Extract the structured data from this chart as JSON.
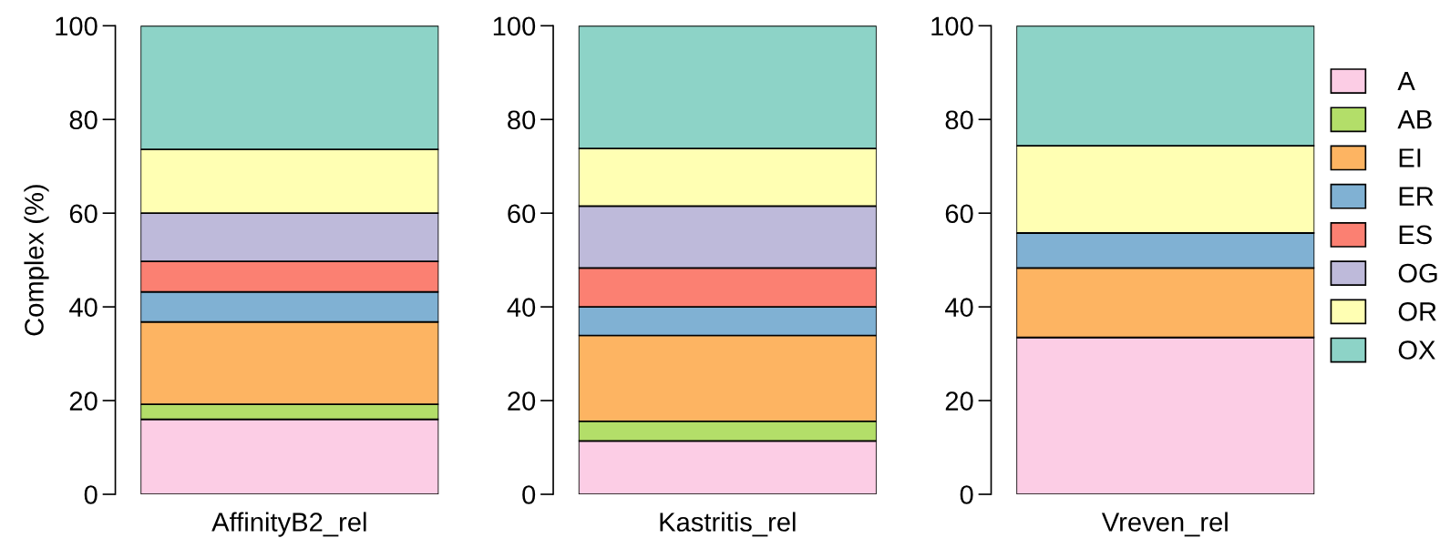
{
  "chart_data": [
    {
      "type": "bar",
      "stacked": true,
      "categories": [
        "AffinityB2_rel"
      ],
      "ylabel": "Complex (%)",
      "ylim": [
        0,
        100
      ],
      "yticks": [
        0,
        20,
        40,
        60,
        80,
        100
      ],
      "grid": false,
      "series": [
        {
          "color": "#fccde5",
          "values": [
            16
          ]
        },
        {
          "color": "#b3de69",
          "values": [
            3.2
          ]
        },
        {
          "color": "#fdb462",
          "values": [
            17.6
          ]
        },
        {
          "color": "#80b1d3",
          "values": [
            6.4
          ]
        },
        {
          "color": "#fb8072",
          "values": [
            6.5
          ]
        },
        {
          "color": "#bebada",
          "values": [
            10.3
          ]
        },
        {
          "color": "#ffffb3",
          "values": [
            13.6
          ]
        },
        {
          "color": "#8dd3c7",
          "values": [
            26.4
          ]
        }
      ]
    },
    {
      "type": "bar",
      "stacked": true,
      "categories": [
        "Kastritis_rel"
      ],
      "ylim": [
        0,
        100
      ],
      "yticks": [
        0,
        20,
        40,
        60,
        80,
        100
      ],
      "grid": false,
      "series": [
        {
          "color": "#fccde5",
          "values": [
            11.4
          ]
        },
        {
          "color": "#b3de69",
          "values": [
            4.2
          ]
        },
        {
          "color": "#fdb462",
          "values": [
            18.3
          ]
        },
        {
          "color": "#80b1d3",
          "values": [
            6.1
          ]
        },
        {
          "color": "#fb8072",
          "values": [
            8.3
          ]
        },
        {
          "color": "#bebada",
          "values": [
            13.2
          ]
        },
        {
          "color": "#ffffb3",
          "values": [
            12.3
          ]
        },
        {
          "color": "#8dd3c7",
          "values": [
            26.2
          ]
        }
      ]
    },
    {
      "type": "bar",
      "stacked": true,
      "categories": [
        "Vreven_rel"
      ],
      "ylim": [
        0,
        100
      ],
      "yticks": [
        0,
        20,
        40,
        60,
        80,
        100
      ],
      "grid": false,
      "legend": "right",
      "series": [
        {
          "name": "A",
          "color": "#fccde5",
          "values": [
            33.5
          ]
        },
        {
          "name": "AB",
          "color": "#b3de69",
          "values": [
            0
          ]
        },
        {
          "name": "EI",
          "color": "#fdb462",
          "values": [
            14.8
          ]
        },
        {
          "name": "ER",
          "color": "#80b1d3",
          "values": [
            7.5
          ]
        },
        {
          "name": "ES",
          "color": "#fb8072",
          "values": [
            0
          ]
        },
        {
          "name": "OG",
          "color": "#bebada",
          "values": [
            0
          ]
        },
        {
          "name": "OR",
          "color": "#ffffb3",
          "values": [
            18.6
          ]
        },
        {
          "name": "OX",
          "color": "#8dd3c7",
          "values": [
            25.6
          ]
        }
      ]
    }
  ]
}
